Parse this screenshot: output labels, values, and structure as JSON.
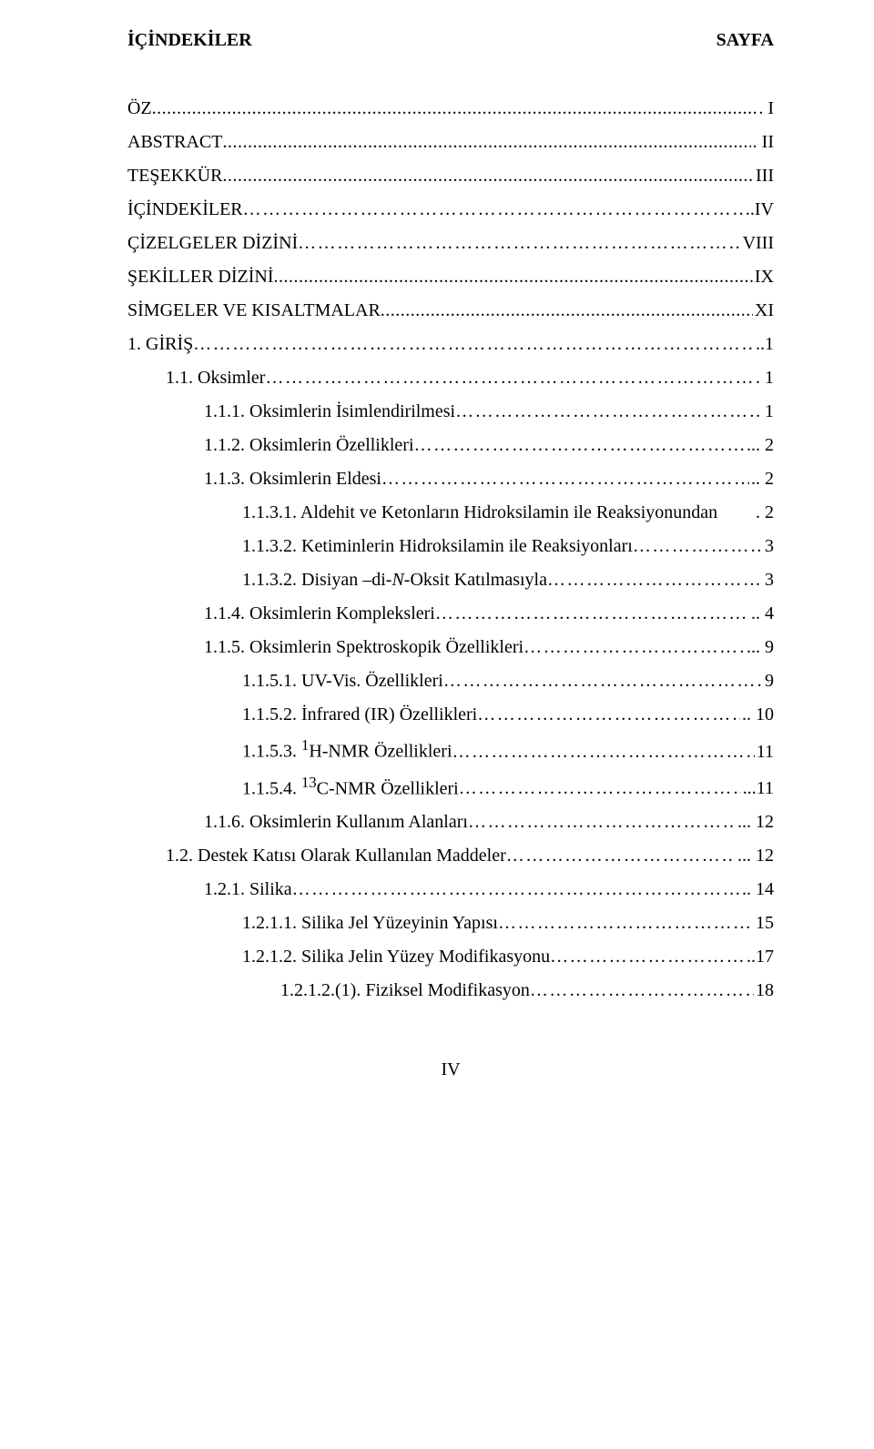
{
  "header": {
    "left": "İÇİNDEKİLER",
    "right": "SAYFA"
  },
  "footer": "IV",
  "leader_dots": "…………………………………………………………………………………………………………………………………………",
  "leader_dots_dense": "..............................................................................................................................................................................................",
  "entries": [
    {
      "label": "ÖZ",
      "page": ". I",
      "indent": 0,
      "leader": "dense"
    },
    {
      "label": "ABSTRACT",
      "page": ". II",
      "indent": 0,
      "leader": "dense"
    },
    {
      "label": "TEŞEKKÜR",
      "page": "III",
      "indent": 0,
      "leader": "dense"
    },
    {
      "label": "İÇİNDEKİLER",
      "page": "..IV",
      "indent": 0,
      "leader": "dots"
    },
    {
      "label": "ÇİZELGELER DİZİNİ",
      "page": " VIII",
      "indent": 0,
      "leader": "dots"
    },
    {
      "label": "ŞEKİLLER DİZİNİ",
      "page": " IX",
      "indent": 0,
      "leader": "dense"
    },
    {
      "label": "SİMGELER VE KISALTMALAR",
      "page": "XI",
      "indent": 0,
      "leader": "dense"
    },
    {
      "label": "1. GİRİŞ",
      "page": "..1",
      "indent": 0,
      "leader": "dots"
    },
    {
      "label": "1.1. Oksimler",
      "page": ". 1",
      "indent": 1,
      "leader": "dots"
    },
    {
      "label": "1.1.1. Oksimlerin İsimlendirilmesi",
      "page": " 1",
      "indent": 2,
      "leader": "dots"
    },
    {
      "label": "1.1.2. Oksimlerin Özellikleri",
      "page": "... 2",
      "indent": 2,
      "leader": "dots"
    },
    {
      "label": "1.1.3. Oksimlerin Eldesi",
      "page": ".. 2",
      "indent": 2,
      "leader": "dots"
    },
    {
      "label": "1.1.3.1. Aldehit ve Ketonların Hidroksilamin ile Reaksiyonundan",
      "page": ". 2",
      "indent": 3,
      "leader": "none"
    },
    {
      "label": "1.1.3.2. Ketiminlerin Hidroksilamin ile Reaksiyonları",
      "page": " 3",
      "indent": 3,
      "leader": "dots"
    },
    {
      "label": "1.1.3.2. Disiyan –di-N-Oksit Katılmasıyla",
      "page": ". 3",
      "indent": 3,
      "leader": "dots",
      "italic_part": "N"
    },
    {
      "label": "1.1.4. Oksimlerin Kompleksleri",
      "page": ".. 4",
      "indent": 2,
      "leader": "dots"
    },
    {
      "label": "1.1.5. Oksimlerin Spektroskopik Özellikleri",
      "page": "... 9",
      "indent": 2,
      "leader": "dots"
    },
    {
      "label": "1.1.5.1. UV-Vis. Özellikleri",
      "page": " 9",
      "indent": 3,
      "leader": "dots"
    },
    {
      "label": "1.1.5.2. İnfrared (IR) Özellikleri",
      "page": ".. 10",
      "indent": 3,
      "leader": "dots"
    },
    {
      "label_html": "1.1.5.3. <sup>1</sup>H-NMR Özellikleri",
      "page": " 11",
      "indent": 3,
      "leader": "dots"
    },
    {
      "label_html": "1.1.5.4. <sup>13</sup>C-NMR Özellikleri",
      "page": "...11",
      "indent": 3,
      "leader": "dots"
    },
    {
      "label": "1.1.6. Oksimlerin Kullanım Alanları",
      "page": "... 12",
      "indent": 2,
      "leader": "dots"
    },
    {
      "label": "1.2. Destek Katısı Olarak Kullanılan Maddeler",
      "page": "... 12",
      "indent": 1,
      "leader": "dots"
    },
    {
      "label": "1.2.1. Silika",
      "page": ".. 14",
      "indent": 2,
      "leader": "dots"
    },
    {
      "label": "1.2.1.1. Silika Jel Yüzeyinin Yapısı",
      "page": " 15",
      "indent": 3,
      "leader": "dots"
    },
    {
      "label": "1.2.1.2. Silika Jelin Yüzey Modifikasyonu",
      "page": "..17",
      "indent": 3,
      "leader": "dots"
    },
    {
      "label": "1.2.1.2.(1). Fiziksel Modifikasyon",
      "page": " 18",
      "indent": 4,
      "leader": "dots"
    }
  ]
}
